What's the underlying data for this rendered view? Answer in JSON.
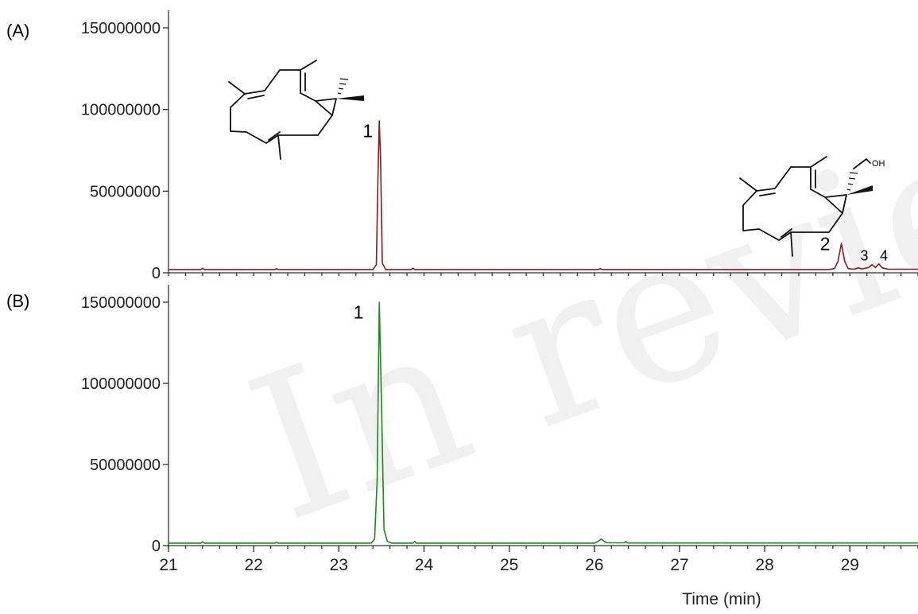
{
  "watermark": "In review",
  "colors": {
    "panelA": "#8b1a1a",
    "panelB": "#1c8a1c",
    "axis": "#333333"
  },
  "molecule_A_icon": "casbene-structure-icon",
  "molecule_B_icon": "hydroxycasbene-structure-icon",
  "molecule_B_label": "OH",
  "chart_data": [
    {
      "type": "line",
      "panel": "(A)",
      "xlabel": "",
      "ylabel": "",
      "xlim": [
        21,
        29.8
      ],
      "ylim": [
        0,
        150000000
      ],
      "yticks": [
        "150000000",
        "100000000",
        "50000000",
        "0"
      ],
      "ytick_values": [
        150000000,
        100000000,
        50000000,
        0
      ],
      "series": [
        {
          "points": [
            [
              21,
              2000000
            ],
            [
              21.38,
              2000000
            ],
            [
              21.4,
              2800000
            ],
            [
              21.42,
              2000000
            ],
            [
              22.25,
              2000000
            ],
            [
              22.27,
              2600000
            ],
            [
              22.29,
              2000000
            ],
            [
              23.4,
              2000000
            ],
            [
              23.44,
              5000000
            ],
            [
              23.46,
              60000000
            ],
            [
              23.475,
              93000000
            ],
            [
              23.49,
              70000000
            ],
            [
              23.51,
              6000000
            ],
            [
              23.55,
              2000000
            ],
            [
              23.85,
              2000000
            ],
            [
              23.87,
              2800000
            ],
            [
              23.89,
              2000000
            ],
            [
              26.05,
              2000000
            ],
            [
              26.07,
              2600000
            ],
            [
              26.09,
              2000000
            ],
            [
              28.75,
              2000000
            ],
            [
              28.82,
              2600000
            ],
            [
              28.86,
              7000000
            ],
            [
              28.9,
              18000000
            ],
            [
              28.94,
              7000000
            ],
            [
              28.98,
              2600000
            ],
            [
              29.05,
              2200000
            ],
            [
              29.1,
              3000000
            ],
            [
              29.14,
              2400000
            ],
            [
              29.22,
              3200000
            ],
            [
              29.26,
              5000000
            ],
            [
              29.3,
              3200000
            ],
            [
              29.34,
              5500000
            ],
            [
              29.38,
              3000000
            ],
            [
              29.45,
              2200000
            ],
            [
              29.8,
              2200000
            ]
          ]
        }
      ],
      "annotations": [
        {
          "text": "1",
          "x": 23.34,
          "y": 83000000
        },
        {
          "text": "2",
          "x": 28.71,
          "y": 14000000
        },
        {
          "text": "3",
          "x": 29.17,
          "y": 7500000
        },
        {
          "text": "4",
          "x": 29.4,
          "y": 7500000
        }
      ]
    },
    {
      "type": "line",
      "panel": "(B)",
      "xlabel": "Time (min)",
      "ylabel": "",
      "xlim": [
        21,
        29.8
      ],
      "ylim": [
        0,
        150000000
      ],
      "xticks": [
        "21",
        "22",
        "23",
        "24",
        "25",
        "26",
        "27",
        "28",
        "29"
      ],
      "xtick_values": [
        21,
        22,
        23,
        24,
        25,
        26,
        27,
        28,
        29
      ],
      "yticks": [
        "150000000",
        "100000000",
        "50000000",
        "0"
      ],
      "ytick_values": [
        150000000,
        100000000,
        50000000,
        0
      ],
      "series": [
        {
          "points": [
            [
              21,
              1500000
            ],
            [
              21.38,
              1500000
            ],
            [
              21.4,
              2300000
            ],
            [
              21.42,
              1500000
            ],
            [
              22.25,
              1500000
            ],
            [
              22.27,
              2100000
            ],
            [
              22.29,
              1500000
            ],
            [
              23.38,
              1500000
            ],
            [
              23.42,
              4000000
            ],
            [
              23.45,
              40000000
            ],
            [
              23.475,
              150000000
            ],
            [
              23.5,
              90000000
            ],
            [
              23.53,
              10000000
            ],
            [
              23.57,
              2500000
            ],
            [
              23.62,
              1500000
            ],
            [
              23.87,
              1500000
            ],
            [
              23.89,
              2600000
            ],
            [
              23.91,
              1500000
            ],
            [
              26.0,
              1500000
            ],
            [
              26.05,
              2800000
            ],
            [
              26.08,
              4000000
            ],
            [
              26.11,
              2800000
            ],
            [
              26.15,
              1700000
            ],
            [
              26.35,
              1700000
            ],
            [
              26.37,
              2500000
            ],
            [
              26.39,
              1600000
            ],
            [
              29.8,
              1600000
            ]
          ]
        }
      ],
      "annotations": [
        {
          "text": "1",
          "x": 23.23,
          "y": 140000000
        }
      ]
    }
  ]
}
